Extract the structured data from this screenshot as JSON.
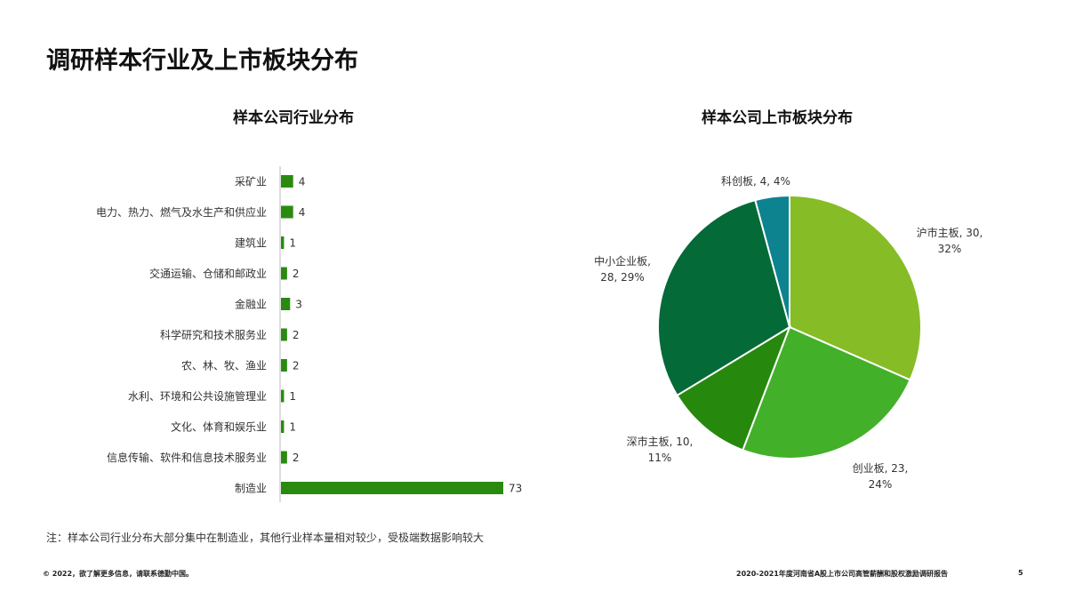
{
  "page_title": "调研样本行业及上市板块分布",
  "note": "注：样本公司行业分布大部分集中在制造业，其他行业样本量相对较少，受极端数据影响较大",
  "footer": {
    "left": "© 2022，欲了解更多信息，请联系德勤中国。",
    "right": "2020-2021年度河南省A股上市公司高管薪酬和股权激励调研报告",
    "page": "5"
  },
  "chart_data": [
    {
      "type": "bar",
      "orientation": "horizontal",
      "title": "样本公司行业分布",
      "categories": [
        "采矿业",
        "电力、热力、燃气及水生产和供应业",
        "建筑业",
        "交通运输、仓储和邮政业",
        "金融业",
        "科学研究和技术服务业",
        "农、林、牧、渔业",
        "水利、环境和公共设施管理业",
        "文化、体育和娱乐业",
        "信息传输、软件和信息技术服务业",
        "制造业"
      ],
      "values": [
        4,
        4,
        1,
        2,
        3,
        2,
        2,
        1,
        1,
        2,
        73
      ],
      "color": "#2a8a10",
      "grid": false
    },
    {
      "type": "pie",
      "title": "样本公司上市板块分布",
      "categories": [
        "沪市主板",
        "创业板",
        "深市主板",
        "中小企业板",
        "科创板"
      ],
      "values": [
        30,
        23,
        10,
        28,
        4
      ],
      "percent_labels": [
        "32%",
        "24%",
        "11%",
        "29%",
        "4%"
      ],
      "colors": [
        "#86bc25",
        "#43b02a",
        "#26890d",
        "#046a38",
        "#0d8390"
      ]
    }
  ]
}
